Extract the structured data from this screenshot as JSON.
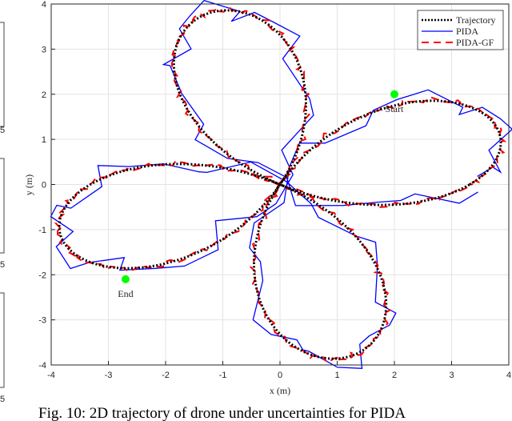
{
  "chart_data": {
    "type": "line",
    "title": "",
    "xlabel": "x (m)",
    "ylabel": "y (m)",
    "xlim": [
      -4,
      4
    ],
    "ylim": [
      -4,
      4
    ],
    "xticks": [
      "-4",
      "-3",
      "-2",
      "-1",
      "0",
      "1",
      "2",
      "3",
      "4"
    ],
    "yticks": [
      "-4",
      "-3",
      "-2",
      "-1",
      "0",
      "1",
      "2",
      "3",
      "4"
    ],
    "grid": true,
    "legend_position": "top-right",
    "series": [
      {
        "name": "Trajectory",
        "style": "dotted",
        "color": "#000000",
        "curve": "rose r = 4 cos(2(θ - 17°))",
        "amplitude": 4,
        "petals": 4,
        "rotation_deg": 17,
        "noise": 0
      },
      {
        "name": "PIDA",
        "style": "solid",
        "color": "#0000ff",
        "curve": "rose r = 4 cos(2(θ - 17°)) with deviations",
        "amplitude": 4.05,
        "petals": 4,
        "rotation_deg": 17,
        "noise": 0.18
      },
      {
        "name": "PIDA-GF",
        "style": "dashed",
        "color": "#ff0000",
        "curve": "rose r = 4 cos(2(θ - 17°)) close tracking",
        "amplitude": 4.02,
        "petals": 4,
        "rotation_deg": 17,
        "noise": 0.04
      }
    ],
    "annotations": [
      {
        "text": "Start",
        "x": 2.0,
        "y": 2.0,
        "marker_color": "#00ff00"
      },
      {
        "text": "End",
        "x": -2.7,
        "y": -2.1,
        "marker_color": "#00ff00"
      }
    ]
  },
  "left_fragment_labels": [
    "5",
    "5",
    "5"
  ],
  "caption": "Fig. 10: 2D trajectory of drone under uncertainties for PIDA"
}
